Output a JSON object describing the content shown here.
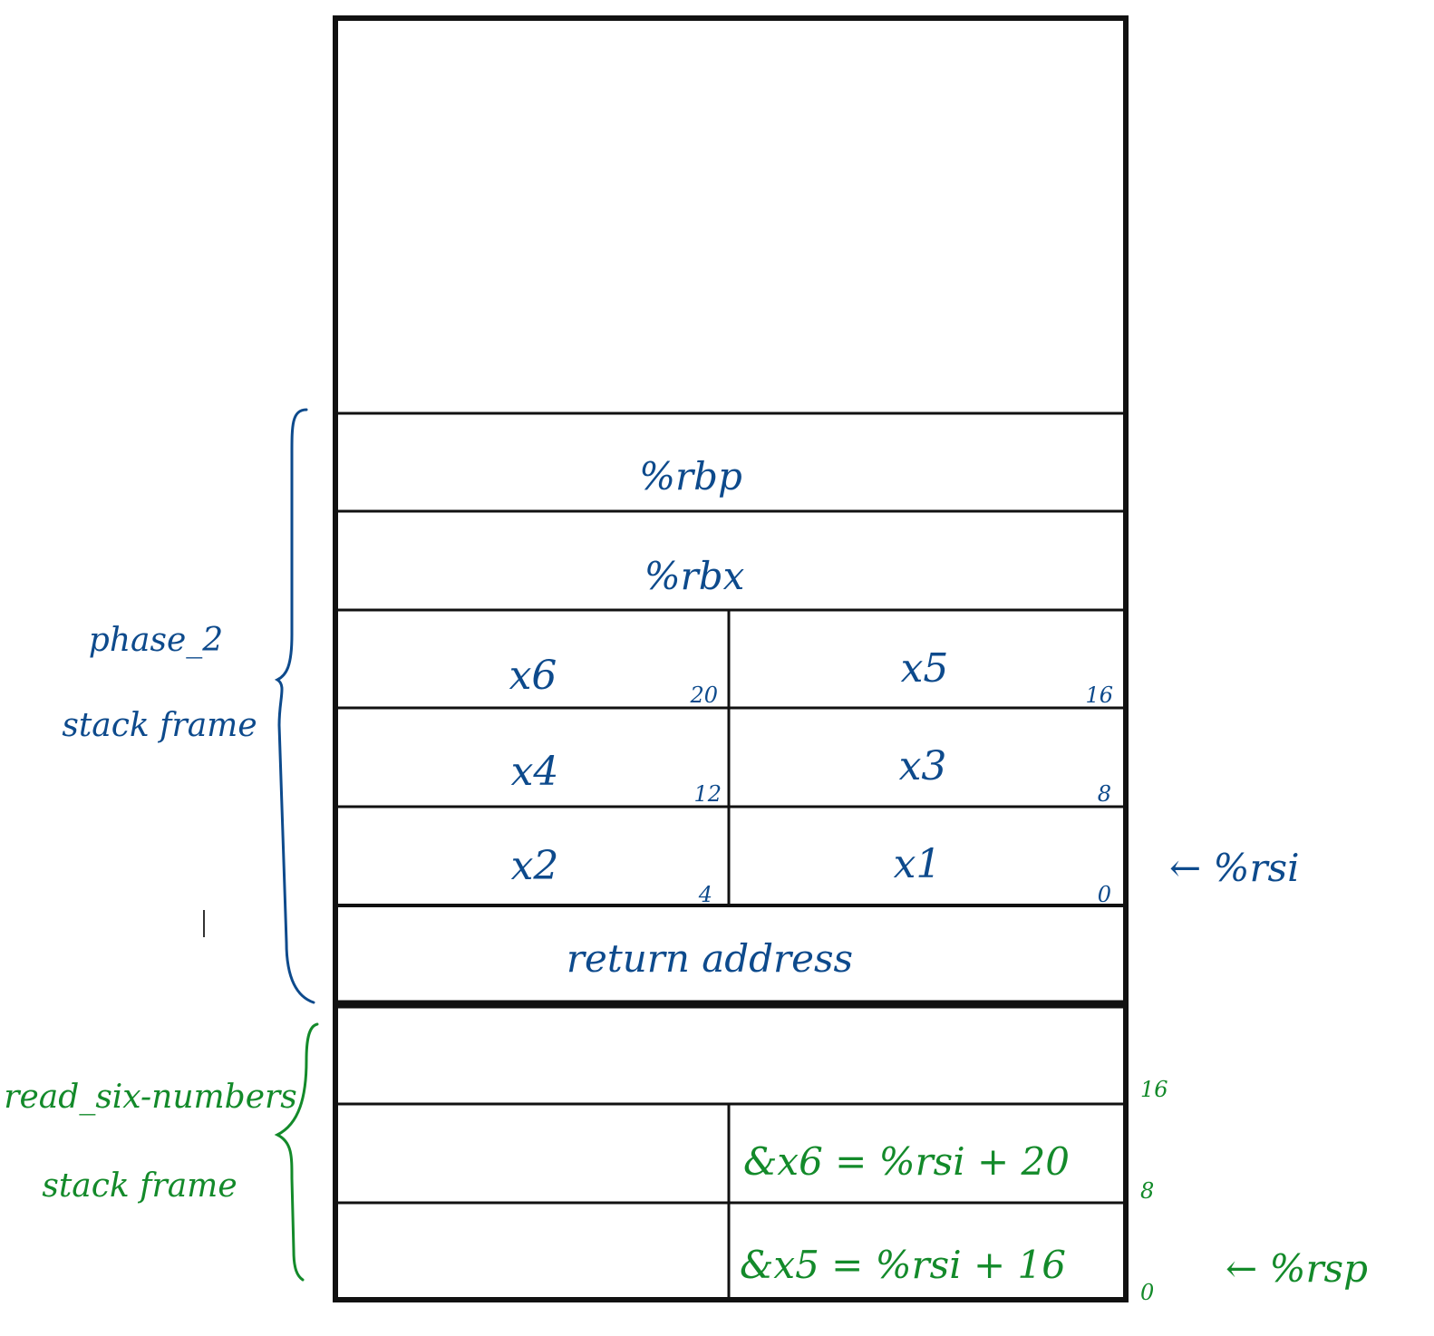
{
  "stack": {
    "rows": {
      "rbp": "%rbp",
      "rbx": "%rbx",
      "x6": "x6",
      "x5": "x5",
      "x4": "x4",
      "x3": "x3",
      "x2": "x2",
      "x1": "x1",
      "return_address": "return address",
      "x6_addr": "&x6 = %rsi + 20",
      "x5_addr": "&x5 = %rsi + 16"
    },
    "offsets": {
      "x6": "20",
      "x5": "16",
      "x4": "12",
      "x3": "8",
      "x2": "4",
      "x1": "0",
      "rsn_16": "16",
      "rsn_8": "8",
      "rsn_0": "0"
    }
  },
  "labels": {
    "phase2_line1": "phase_2",
    "phase2_line2": "stack frame",
    "rsn_line1": "read_six-numbers",
    "rsn_line2": "stack frame",
    "rsi_pointer": "← %rsi",
    "rsp_pointer": "← %rsp"
  },
  "colors": {
    "blue_ink": "#0d4a8c",
    "green_ink": "#138a2a",
    "box_line": "#111111"
  }
}
